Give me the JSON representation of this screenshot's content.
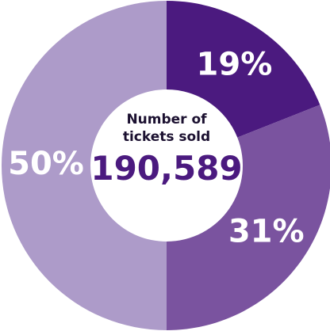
{
  "chart_data": {
    "type": "donut",
    "values": [
      19,
      31,
      50
    ],
    "value_labels": [
      "19%",
      "31%",
      "50%"
    ],
    "colors": [
      "#4b1a7f",
      "#7a539f",
      "#ad9bc9"
    ],
    "center_title": "Number of tickets sold",
    "center_value": "190,589"
  }
}
